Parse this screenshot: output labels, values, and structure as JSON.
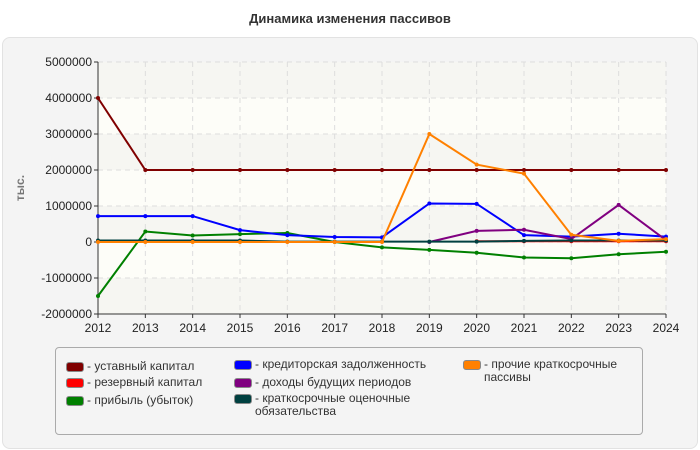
{
  "chart_data": {
    "type": "line",
    "title": "Динамика изменения пассивов",
    "ylabel": "тыс.",
    "xlabel": "",
    "x": [
      "2012",
      "2013",
      "2014",
      "2015",
      "2016",
      "2017",
      "2018",
      "2019",
      "2020",
      "2021",
      "2022",
      "2023",
      "2024"
    ],
    "ylim": [
      -2000000,
      5000000
    ],
    "yticks": [
      "5000000",
      "4000000",
      "3000000",
      "2000000",
      "1000000",
      "0",
      "-1000000",
      "-2000000"
    ],
    "grid": true,
    "legend_position": "bottom",
    "series": [
      {
        "name": "уставный капитал",
        "color": "#800000",
        "values": [
          4000000,
          2000000,
          2000000,
          2000000,
          2000000,
          2000000,
          2000000,
          2000000,
          2000000,
          2000000,
          2000000,
          2000000,
          2000000
        ]
      },
      {
        "name": "резервный капитал",
        "color": "#ff0000",
        "values": [
          null,
          null,
          null,
          null,
          null,
          null,
          null,
          null,
          20000,
          20000,
          20000,
          20000,
          20000
        ]
      },
      {
        "name": "прибыль (убыток)",
        "color": "#008000",
        "values": [
          -1500000,
          290000,
          180000,
          220000,
          250000,
          0,
          -150000,
          -220000,
          -300000,
          -430000,
          -450000,
          -340000,
          -270000
        ]
      },
      {
        "name": "кредиторская задолженность",
        "color": "#0000ff",
        "values": [
          720000,
          720000,
          720000,
          330000,
          190000,
          140000,
          130000,
          1070000,
          1060000,
          190000,
          150000,
          230000,
          150000
        ]
      },
      {
        "name": "доходы будущих периодов",
        "color": "#800080",
        "values": [
          null,
          null,
          null,
          null,
          null,
          null,
          null,
          0,
          310000,
          340000,
          80000,
          1030000,
          50000
        ]
      },
      {
        "name": "краткосрочные оценочные обязательства",
        "color": "#004040",
        "values": [
          40000,
          40000,
          40000,
          40000,
          10000,
          10000,
          10000,
          10000,
          10000,
          30000,
          40000,
          40000,
          40000
        ]
      },
      {
        "name": "прочие краткосрочные пассивы",
        "color": "#ff8000",
        "values": [
          0,
          0,
          0,
          0,
          0,
          0,
          0,
          3000000,
          2150000,
          1900000,
          200000,
          30000,
          80000
        ]
      }
    ]
  }
}
